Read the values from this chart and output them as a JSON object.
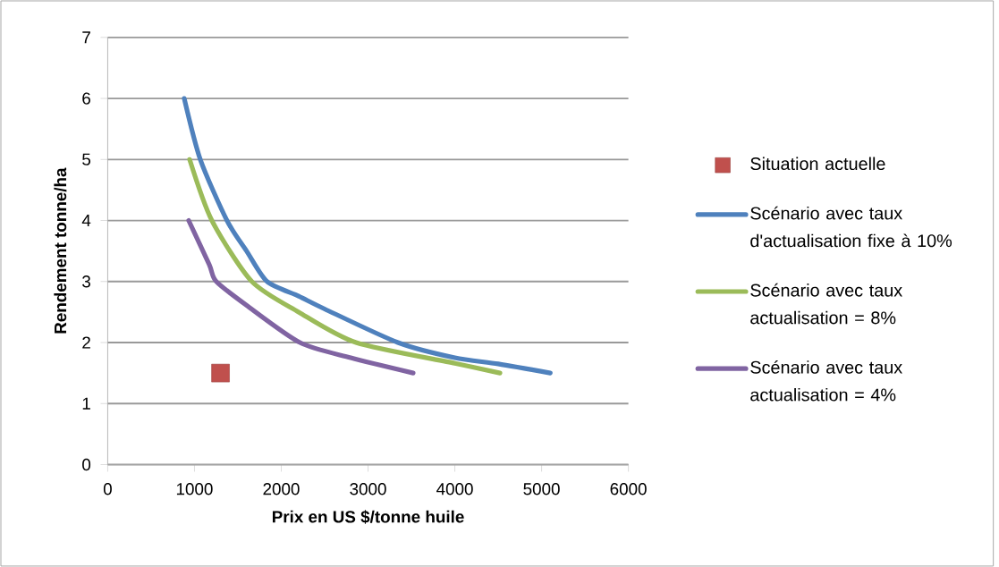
{
  "chart_data": {
    "type": "line",
    "xlabel": "Prix en US $/tonne huile",
    "ylabel": "Rendement tonne/ha",
    "xlim": [
      0,
      6000
    ],
    "ylim": [
      0,
      7
    ],
    "xticks": [
      0,
      1000,
      2000,
      3000,
      4000,
      5000,
      6000
    ],
    "yticks": [
      0,
      1,
      2,
      3,
      4,
      5,
      6,
      7
    ],
    "grid": "y",
    "legend": "right",
    "line_style": "solid",
    "series": [
      {
        "name": "Situation actuelle",
        "type": "scatter",
        "marker": "square",
        "color": "#c0504d",
        "x": [
          1300
        ],
        "values": [
          1.5
        ]
      },
      {
        "name": "Scénario avec taux d'actualisation fixe à 10%",
        "color": "#4f81bd",
        "x": [
          882,
          1067,
          1374,
          1600,
          1836,
          2200,
          2500,
          3344,
          4000,
          4500,
          5100
        ],
        "values": [
          6.0,
          5.0,
          4.0,
          3.5,
          3.0,
          2.76,
          2.55,
          2.0,
          1.75,
          1.65,
          1.5
        ]
      },
      {
        "name": "Scénario avec taux actualisation = 8%",
        "color": "#9bbb59",
        "x": [
          944,
          1200,
          1661,
          2200,
          2862,
          4000,
          4520
        ],
        "values": [
          5.0,
          4.0,
          3.0,
          2.5,
          2.0,
          1.66,
          1.5
        ]
      },
      {
        "name": "Scénario avec taux actualisation = 4%",
        "color": "#8064a2",
        "x": [
          933,
          1169,
          1251,
          1600,
          2215,
          2800,
          3520
        ],
        "values": [
          4.0,
          3.28,
          3.0,
          2.61,
          2.0,
          1.75,
          1.5
        ]
      }
    ]
  }
}
